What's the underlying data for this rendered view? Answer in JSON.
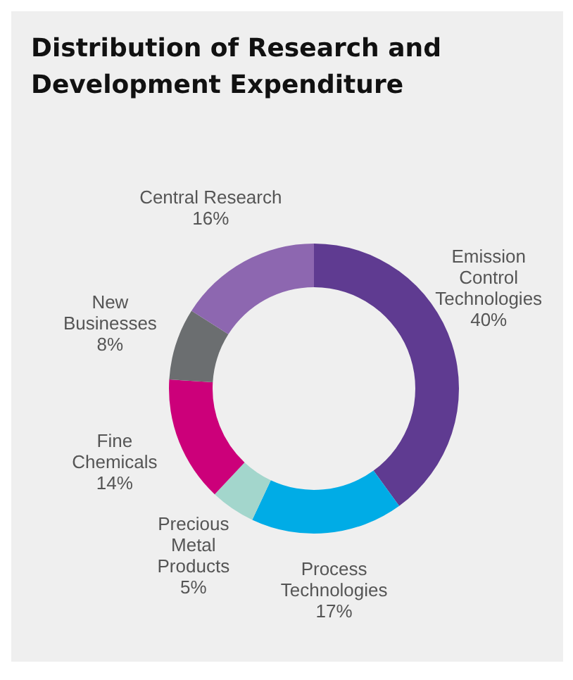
{
  "chart_data": {
    "type": "donut",
    "title": "Distribution of Research and Development Expenditure",
    "categories": [
      "Emission Control Technologies",
      "Process Technologies",
      "Precious Metal Products",
      "Fine Chemicals",
      "New Businesses",
      "Central Research"
    ],
    "values": [
      40,
      17,
      5,
      14,
      8,
      16
    ],
    "value_labels": [
      "40%",
      "17%",
      "5%",
      "14%",
      "8%",
      "16%"
    ],
    "colors": [
      "#5f3b91",
      "#00ace6",
      "#a3d6cc",
      "#cc007a",
      "#6b6e70",
      "#8d67b0"
    ]
  }
}
